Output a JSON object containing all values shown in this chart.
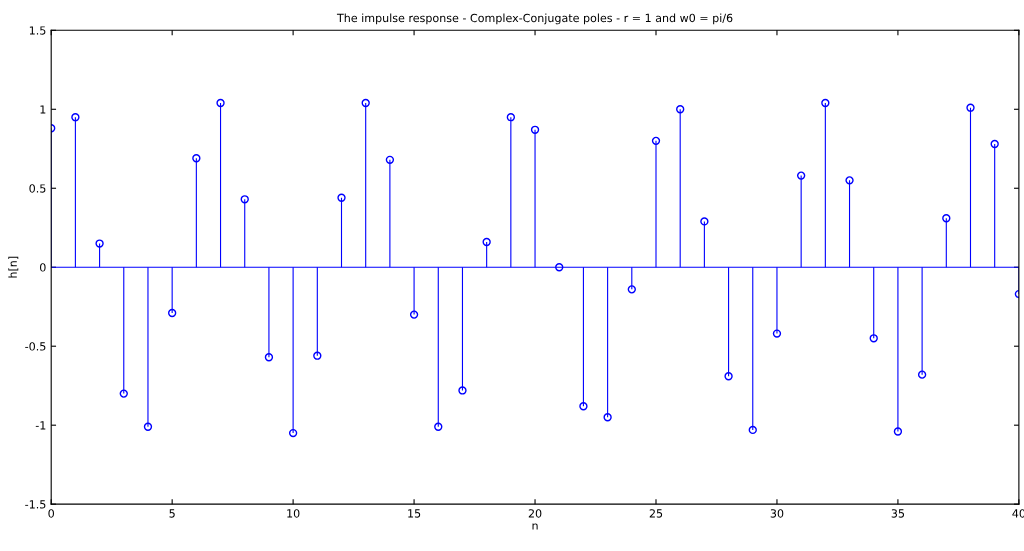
{
  "chart_data": {
    "type": "lollipop",
    "title": "The impulse response - Complex-Conjugate poles - r = 1 and w0 = pi/6",
    "xlabel": "n",
    "ylabel": "h[n]",
    "x": [
      0,
      1,
      2,
      3,
      4,
      5,
      6,
      7,
      8,
      9,
      10,
      11,
      12,
      13,
      14,
      15,
      16,
      17,
      18,
      19,
      20,
      21,
      22,
      23,
      24,
      25,
      26,
      27,
      28,
      29,
      30,
      31,
      32,
      33,
      34,
      35,
      36,
      37,
      38,
      39,
      40
    ],
    "series": [
      {
        "color": "#0000ff",
        "values": [
          0.88,
          0.95,
          0.15,
          -0.8,
          -1.01,
          -0.29,
          0.69,
          1.04,
          0.43,
          -0.57,
          -1.05,
          -0.56,
          0.44,
          1.04,
          0.68,
          -0.3,
          -1.01,
          -0.78,
          0.16,
          0.95,
          0.87,
          0.0,
          -0.88,
          -0.95,
          -0.14,
          0.8,
          1.0,
          0.29,
          -0.69,
          -1.03,
          -0.42,
          0.58,
          1.04,
          0.55,
          -0.45,
          -1.04,
          -0.68,
          0.31,
          1.01,
          0.78,
          -0.17
        ]
      }
    ],
    "xlim": [
      0,
      40
    ],
    "xticks": [
      0,
      5,
      10,
      15,
      20,
      25,
      30,
      35,
      40
    ],
    "ylim": [
      -1.5,
      1.5
    ],
    "yticks": [
      -1.5,
      -1,
      -0.5,
      0,
      0.5,
      1,
      1.5
    ],
    "ref_lines": [
      {
        "axis": "y",
        "value": 0,
        "color": "#0000ff"
      }
    ],
    "marker": "circle",
    "grid": false,
    "legend": false
  }
}
